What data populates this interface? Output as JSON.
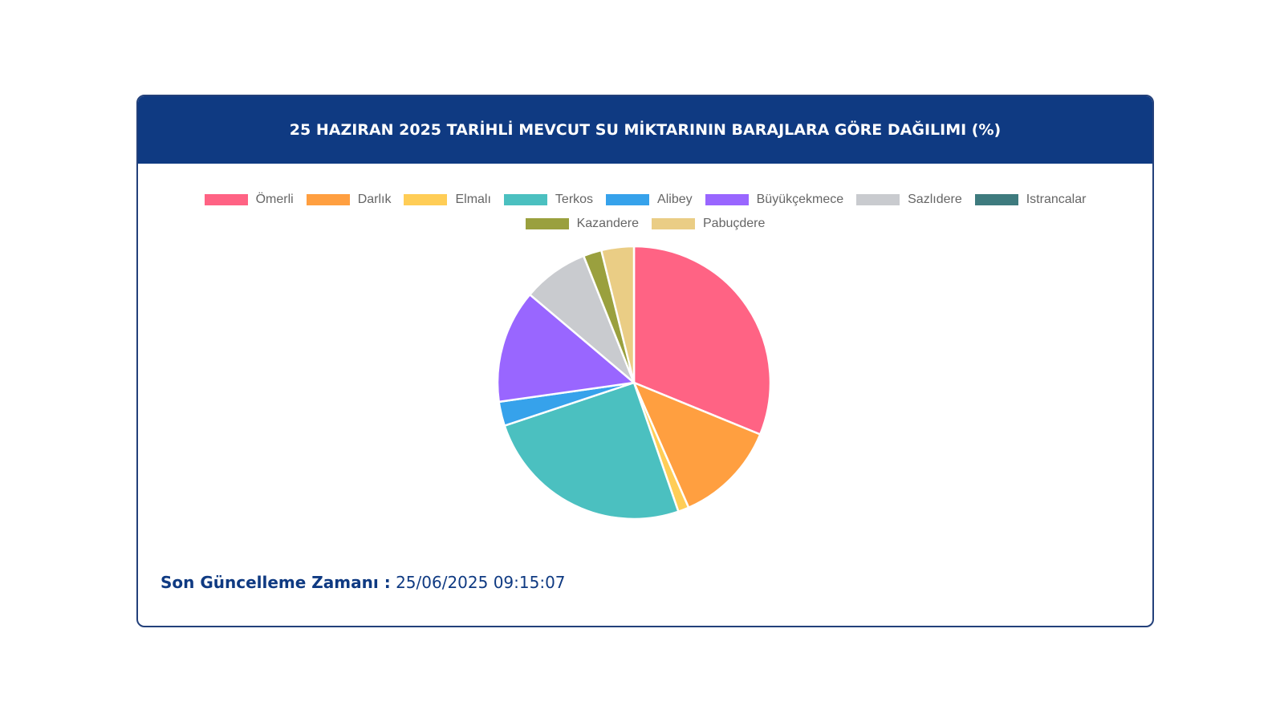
{
  "card": {
    "title": "25 HAZIRAN 2025 TARİHLİ MEVCUT SU MİKTARININ BARAJLARA GÖRE DAĞILIMI (%)"
  },
  "footer": {
    "label": "Son Güncelleme Zamanı :",
    "value": "25/06/2025 09:15:07"
  },
  "colors": {
    "header_bg": "#0f3a82",
    "border": "#23407a"
  },
  "chart_data": {
    "type": "pie",
    "title": "25 HAZIRAN 2025 TARİHLİ MEVCUT SU MİKTARININ BARAJLARA GÖRE DAĞILIMI (%)",
    "legend_position": "top",
    "categories": [
      "Ömerli",
      "Darlık",
      "Elmalı",
      "Terkos",
      "Alibey",
      "Büyükçekmece",
      "Sazlıdere",
      "Istrancalar",
      "Kazandere",
      "Pabuçdere"
    ],
    "values": [
      31.6,
      12.4,
      1.3,
      25.5,
      2.9,
      13.6,
      7.9,
      0.0,
      2.2,
      3.9
    ],
    "colors": [
      "#ff6384",
      "#ff9f40",
      "#ffcd56",
      "#4bc0c0",
      "#36a2eb",
      "#9966ff",
      "#c9cbcf",
      "#3e7b7e",
      "#9aa03e",
      "#eacd85"
    ]
  }
}
